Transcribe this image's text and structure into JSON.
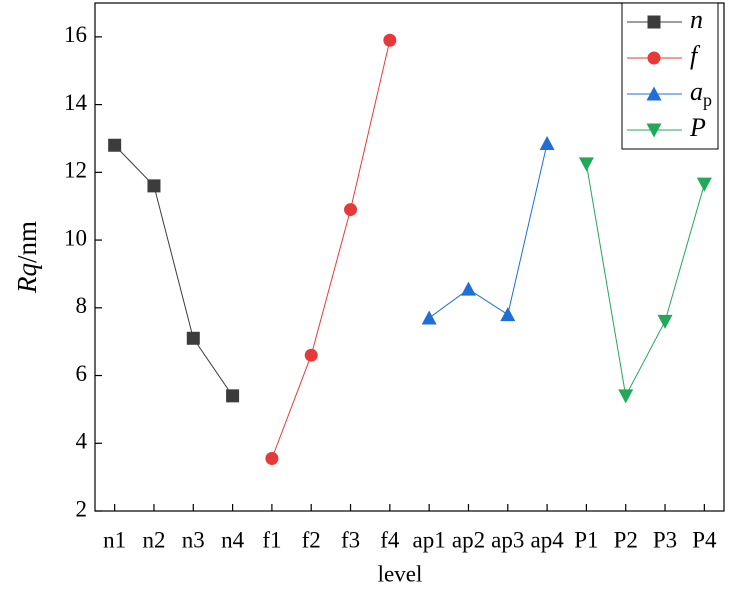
{
  "chart_data": {
    "type": "line",
    "x_label": "level",
    "y_label": "Rq/nm",
    "categories": [
      "n1",
      "n2",
      "n3",
      "n4",
      "f1",
      "f2",
      "f3",
      "f4",
      "ap1",
      "ap2",
      "ap3",
      "ap4",
      "P1",
      "P2",
      "P3",
      "P4"
    ],
    "series": [
      {
        "name": "n",
        "color": "#3c3c3c",
        "marker": "square",
        "values": [
          12.8,
          11.6,
          7.1,
          5.4,
          null,
          null,
          null,
          null,
          null,
          null,
          null,
          null,
          null,
          null,
          null,
          null
        ]
      },
      {
        "name": "f",
        "color": "#e8393a",
        "marker": "circle",
        "values": [
          null,
          null,
          null,
          null,
          3.55,
          6.6,
          10.9,
          15.9,
          null,
          null,
          null,
          null,
          null,
          null,
          null,
          null
        ]
      },
      {
        "name": "ap",
        "color": "#1f6fd6",
        "marker": "triangle-up",
        "values": [
          null,
          null,
          null,
          null,
          null,
          null,
          null,
          null,
          7.7,
          8.55,
          7.8,
          12.85,
          null,
          null,
          null,
          null
        ]
      },
      {
        "name": "P",
        "color": "#23a85a",
        "marker": "triangle-down",
        "values": [
          null,
          null,
          null,
          null,
          null,
          null,
          null,
          null,
          null,
          null,
          null,
          null,
          12.25,
          5.4,
          7.6,
          11.65
        ]
      }
    ],
    "ylim": [
      2,
      17
    ],
    "yticks": [
      2,
      4,
      6,
      8,
      10,
      12,
      14,
      16
    ],
    "legend": "upper right"
  }
}
